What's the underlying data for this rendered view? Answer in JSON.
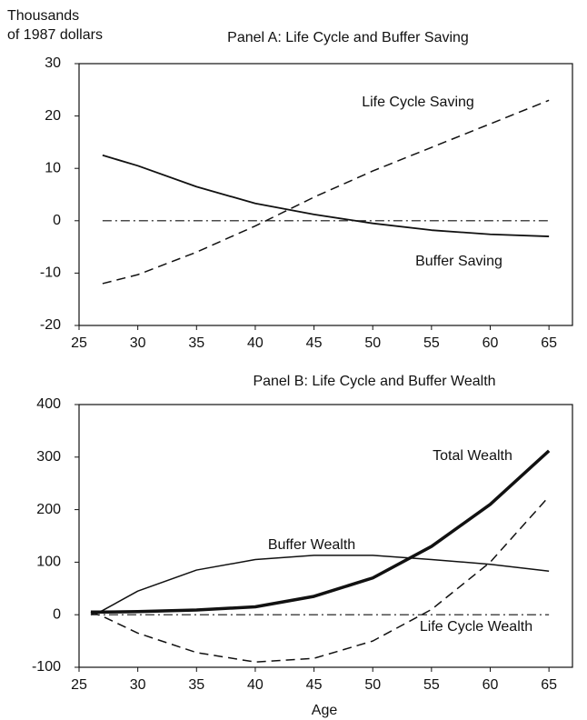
{
  "chart_data": [
    {
      "type": "line",
      "title": "Panel A: Life Cycle and Buffer Saving",
      "y_label": [
        "Thousands",
        "of 1987 dollars"
      ],
      "x": [
        27,
        30,
        35,
        40,
        45,
        50,
        55,
        60,
        65
      ],
      "series": [
        {
          "name": "Life Cycle Saving",
          "color": "#111111",
          "style": "dashed",
          "width": 1.5,
          "values": [
            -12,
            -10.3,
            -6,
            -1,
            4.5,
            9.5,
            14,
            18.5,
            23
          ]
        },
        {
          "name": "Buffer Saving",
          "color": "#111111",
          "style": "solid",
          "width": 1.8,
          "values": [
            12.5,
            10.5,
            6.5,
            3.3,
            1.2,
            -0.5,
            -1.8,
            -2.6,
            -3
          ]
        },
        {
          "color": "#111111",
          "style": "dashdot",
          "width": 1.2,
          "values": [
            0,
            0,
            0,
            0,
            0,
            0,
            0,
            0,
            0
          ]
        }
      ],
      "xlim": [
        25,
        67
      ],
      "xticks": [
        25,
        30,
        35,
        40,
        45,
        50,
        55,
        60,
        65
      ],
      "ylim": [
        -20,
        30
      ],
      "yticks": [
        -20,
        -10,
        0,
        10,
        20,
        30
      ]
    },
    {
      "type": "line",
      "title": "Panel B: Life Cycle and Buffer Wealth",
      "x_label": "Age",
      "x": [
        26,
        27,
        30,
        35,
        40,
        45,
        50,
        55,
        60,
        65
      ],
      "series": [
        {
          "name": "Total Wealth",
          "color": "#111111",
          "style": "solid",
          "width": 3.5,
          "values": [
            5,
            5,
            6,
            9,
            15,
            35,
            70,
            130,
            210,
            312
          ]
        },
        {
          "name": "Buffer Wealth",
          "color": "#111111",
          "style": "solid",
          "width": 1.5,
          "values": [
            0,
            8,
            45,
            85,
            105,
            113,
            113,
            105,
            96,
            83
          ]
        },
        {
          "name": "Life Cycle Wealth",
          "color": "#111111",
          "style": "dashed",
          "width": 1.5,
          "values": [
            5,
            -3,
            -35,
            -72,
            -90,
            -83,
            -50,
            10,
            100,
            225
          ]
        },
        {
          "color": "#111111",
          "style": "dashdot",
          "width": 1.2,
          "values": [
            0,
            0,
            0,
            0,
            0,
            0,
            0,
            0,
            0,
            0
          ]
        }
      ],
      "xlim": [
        25,
        67
      ],
      "xticks": [
        25,
        30,
        35,
        40,
        45,
        50,
        55,
        60,
        65
      ],
      "ylim": [
        -100,
        400
      ],
      "yticks": [
        -100,
        0,
        100,
        200,
        300,
        400
      ]
    }
  ]
}
